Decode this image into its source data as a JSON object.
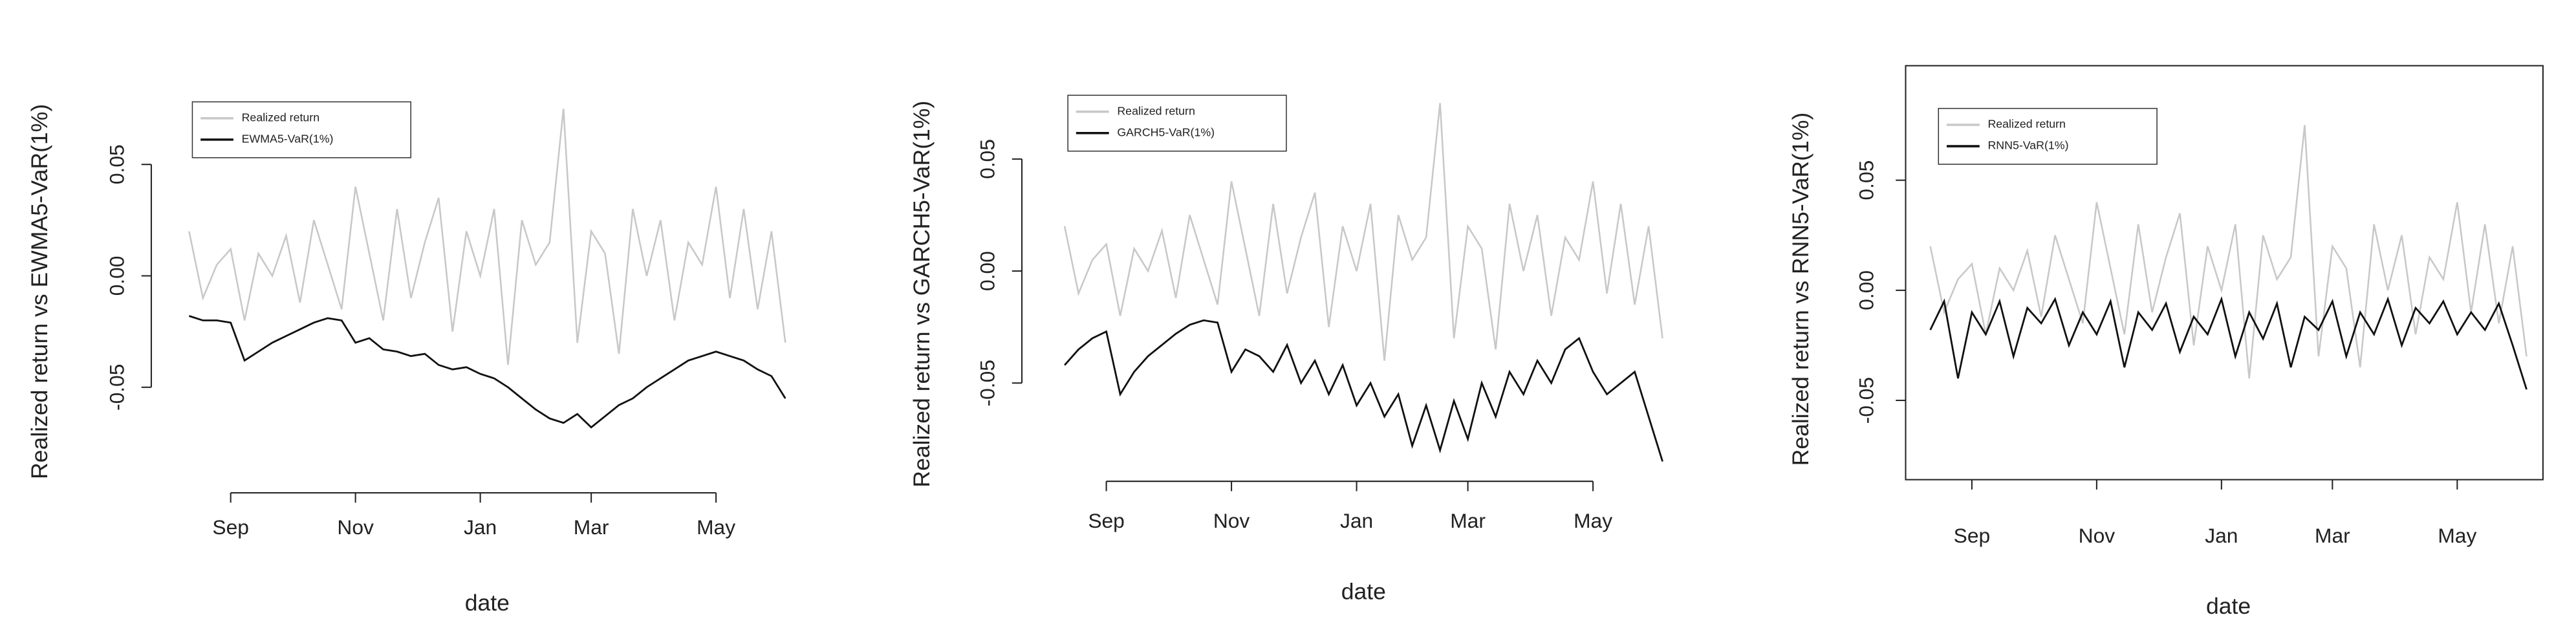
{
  "chart_data": [
    {
      "type": "line",
      "y_label": "Realized return vs EWMA5-VaR(1%)",
      "x_label": "date",
      "categories": [
        null,
        null,
        null,
        "Sep",
        null,
        null,
        null,
        null,
        null,
        null,
        null,
        null,
        "Nov",
        null,
        null,
        null,
        null,
        null,
        null,
        null,
        null,
        "Jan",
        null,
        null,
        null,
        null,
        null,
        null,
        null,
        "Mar",
        null,
        null,
        null,
        null,
        null,
        null,
        null,
        null,
        "May",
        null,
        null,
        null,
        null,
        null
      ],
      "series": [
        {
          "name": "Realized return",
          "color": "#c8c8c8",
          "values": [
            0.02,
            -0.01,
            0.005,
            0.012,
            -0.02,
            0.01,
            0.0,
            0.018,
            -0.012,
            0.025,
            0.005,
            -0.015,
            0.04,
            0.01,
            -0.02,
            0.03,
            -0.01,
            0.015,
            0.035,
            -0.025,
            0.02,
            0.0,
            0.03,
            -0.04,
            0.025,
            0.005,
            0.015,
            0.075,
            -0.03,
            0.02,
            0.01,
            -0.035,
            0.03,
            0.0,
            0.025,
            -0.02,
            0.015,
            0.005,
            0.04,
            -0.01,
            0.03,
            -0.015,
            0.02,
            -0.03
          ]
        },
        {
          "name": "EWMA5-VaR(1%)",
          "color": "#111111",
          "values": [
            -0.018,
            -0.02,
            -0.02,
            -0.021,
            -0.038,
            -0.034,
            -0.03,
            -0.027,
            -0.024,
            -0.021,
            -0.019,
            -0.02,
            -0.03,
            -0.028,
            -0.033,
            -0.034,
            -0.036,
            -0.035,
            -0.04,
            -0.042,
            -0.041,
            -0.044,
            -0.046,
            -0.05,
            -0.055,
            -0.06,
            -0.064,
            -0.066,
            -0.062,
            -0.068,
            -0.063,
            -0.058,
            -0.055,
            -0.05,
            -0.046,
            -0.042,
            -0.038,
            -0.036,
            -0.034,
            -0.036,
            -0.038,
            -0.042,
            -0.045,
            -0.055
          ]
        }
      ],
      "ylim": [
        -0.09,
        0.098
      ],
      "yticks": [
        -0.05,
        {
          "value": 0,
          "label": "0.00"
        },
        0.05
      ],
      "box": false
    },
    {
      "type": "line",
      "y_label": "Realized return vs GARCH5-VaR(1%)",
      "x_label": "date",
      "categories": [
        null,
        null,
        null,
        "Sep",
        null,
        null,
        null,
        null,
        null,
        null,
        null,
        null,
        "Nov",
        null,
        null,
        null,
        null,
        null,
        null,
        null,
        null,
        "Jan",
        null,
        null,
        null,
        null,
        null,
        null,
        null,
        "Mar",
        null,
        null,
        null,
        null,
        null,
        null,
        null,
        null,
        "May",
        null,
        null,
        null,
        null,
        null
      ],
      "series": [
        {
          "name": "Realized return",
          "color": "#c8c8c8",
          "values": [
            0.02,
            -0.01,
            0.005,
            0.012,
            -0.02,
            0.01,
            0.0,
            0.018,
            -0.012,
            0.025,
            0.005,
            -0.015,
            0.04,
            0.01,
            -0.02,
            0.03,
            -0.01,
            0.015,
            0.035,
            -0.025,
            0.02,
            0.0,
            0.03,
            -0.04,
            0.025,
            0.005,
            0.015,
            0.075,
            -0.03,
            0.02,
            0.01,
            -0.035,
            0.03,
            0.0,
            0.025,
            -0.02,
            0.015,
            0.005,
            0.04,
            -0.01,
            0.03,
            -0.015,
            0.02,
            -0.03
          ]
        },
        {
          "name": "GARCH5-VaR(1%)",
          "color": "#111111",
          "values": [
            -0.042,
            -0.035,
            -0.03,
            -0.027,
            -0.055,
            -0.045,
            -0.038,
            -0.033,
            -0.028,
            -0.024,
            -0.022,
            -0.023,
            -0.045,
            -0.035,
            -0.038,
            -0.045,
            -0.033,
            -0.05,
            -0.04,
            -0.055,
            -0.042,
            -0.06,
            -0.05,
            -0.065,
            -0.055,
            -0.078,
            -0.06,
            -0.08,
            -0.058,
            -0.075,
            -0.05,
            -0.065,
            -0.045,
            -0.055,
            -0.04,
            -0.05,
            -0.035,
            -0.03,
            -0.045,
            -0.055,
            -0.05,
            -0.045,
            -0.065,
            -0.085
          ]
        }
      ],
      "ylim": [
        -0.088,
        0.088
      ],
      "yticks": [
        -0.05,
        {
          "value": 0,
          "label": "0.00"
        },
        0.05
      ],
      "box": false
    },
    {
      "type": "line",
      "y_label": "Realized return vs RNN5-VaR(1%)",
      "x_label": "date",
      "categories": [
        null,
        null,
        null,
        "Sep",
        null,
        null,
        null,
        null,
        null,
        null,
        null,
        null,
        "Nov",
        null,
        null,
        null,
        null,
        null,
        null,
        null,
        null,
        "Jan",
        null,
        null,
        null,
        null,
        null,
        null,
        null,
        "Mar",
        null,
        null,
        null,
        null,
        null,
        null,
        null,
        null,
        "May",
        null,
        null,
        null,
        null,
        null
      ],
      "series": [
        {
          "name": "Realized return",
          "color": "#c8c8c8",
          "values": [
            0.02,
            -0.01,
            0.005,
            0.012,
            -0.02,
            0.01,
            0.0,
            0.018,
            -0.012,
            0.025,
            0.005,
            -0.015,
            0.04,
            0.01,
            -0.02,
            0.03,
            -0.01,
            0.015,
            0.035,
            -0.025,
            0.02,
            0.0,
            0.03,
            -0.04,
            0.025,
            0.005,
            0.015,
            0.075,
            -0.03,
            0.02,
            0.01,
            -0.035,
            0.03,
            0.0,
            0.025,
            -0.02,
            0.015,
            0.005,
            0.04,
            -0.01,
            0.03,
            -0.015,
            0.02,
            -0.03
          ]
        },
        {
          "name": "RNN5-VaR(1%)",
          "color": "#111111",
          "values": [
            -0.018,
            -0.005,
            -0.04,
            -0.01,
            -0.02,
            -0.005,
            -0.03,
            -0.008,
            -0.015,
            -0.004,
            -0.025,
            -0.01,
            -0.02,
            -0.005,
            -0.035,
            -0.01,
            -0.018,
            -0.006,
            -0.028,
            -0.012,
            -0.02,
            -0.004,
            -0.03,
            -0.01,
            -0.022,
            -0.006,
            -0.035,
            -0.012,
            -0.018,
            -0.005,
            -0.03,
            -0.01,
            -0.02,
            -0.004,
            -0.025,
            -0.008,
            -0.015,
            -0.005,
            -0.02,
            -0.01,
            -0.018,
            -0.006,
            -0.025,
            -0.045
          ]
        }
      ],
      "ylim": [
        -0.086,
        0.102
      ],
      "yticks": [
        -0.05,
        {
          "value": 0,
          "label": "0.00"
        },
        0.05
      ],
      "box": true
    }
  ]
}
